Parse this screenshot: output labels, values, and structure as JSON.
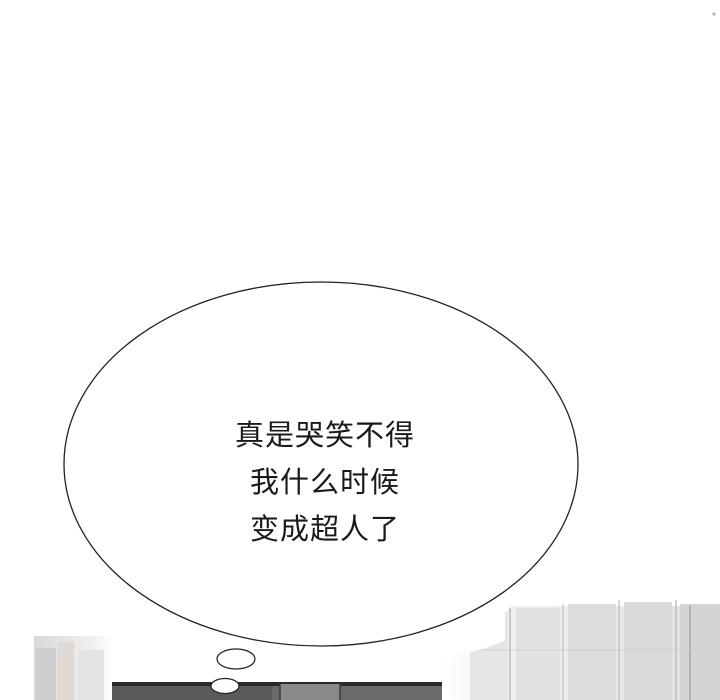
{
  "panel": {
    "background": "#ffffff",
    "ink_color": "#1a1a1a"
  },
  "thought_bubble": {
    "lines": [
      "真是哭笑不得",
      "我什么时候",
      "变成超人了"
    ]
  }
}
